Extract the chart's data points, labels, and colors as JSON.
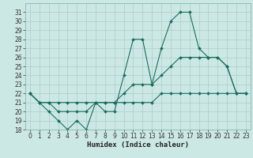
{
  "title": "",
  "xlabel": "Humidex (Indice chaleur)",
  "ylabel": "",
  "background_color": "#cce8e4",
  "grid_color": "#aaccca",
  "line_color": "#1a6e60",
  "x_values": [
    0,
    1,
    2,
    3,
    4,
    5,
    6,
    7,
    8,
    9,
    10,
    11,
    12,
    13,
    14,
    15,
    16,
    17,
    18,
    19,
    20,
    21,
    22,
    23
  ],
  "series1": [
    22,
    21,
    20,
    19,
    18,
    19,
    18,
    21,
    20,
    20,
    24,
    28,
    28,
    23,
    27,
    30,
    31,
    31,
    27,
    26,
    26,
    25,
    22,
    22
  ],
  "series2": [
    22,
    21,
    21,
    20,
    20,
    20,
    20,
    21,
    21,
    21,
    22,
    23,
    23,
    23,
    24,
    25,
    26,
    26,
    26,
    26,
    26,
    25,
    22,
    22
  ],
  "series3": [
    22,
    21,
    21,
    21,
    21,
    21,
    21,
    21,
    21,
    21,
    21,
    21,
    21,
    21,
    22,
    22,
    22,
    22,
    22,
    22,
    22,
    22,
    22,
    22
  ],
  "ylim_min": 18,
  "ylim_max": 32,
  "yticks": [
    18,
    19,
    20,
    21,
    22,
    23,
    24,
    25,
    26,
    27,
    28,
    29,
    30,
    31
  ],
  "xticks": [
    0,
    1,
    2,
    3,
    4,
    5,
    6,
    7,
    8,
    9,
    10,
    11,
    12,
    13,
    14,
    15,
    16,
    17,
    18,
    19,
    20,
    21,
    22,
    23
  ],
  "markersize": 2.0,
  "linewidth": 0.8,
  "tick_labelsize": 5.5,
  "xlabel_fontsize": 6.5
}
